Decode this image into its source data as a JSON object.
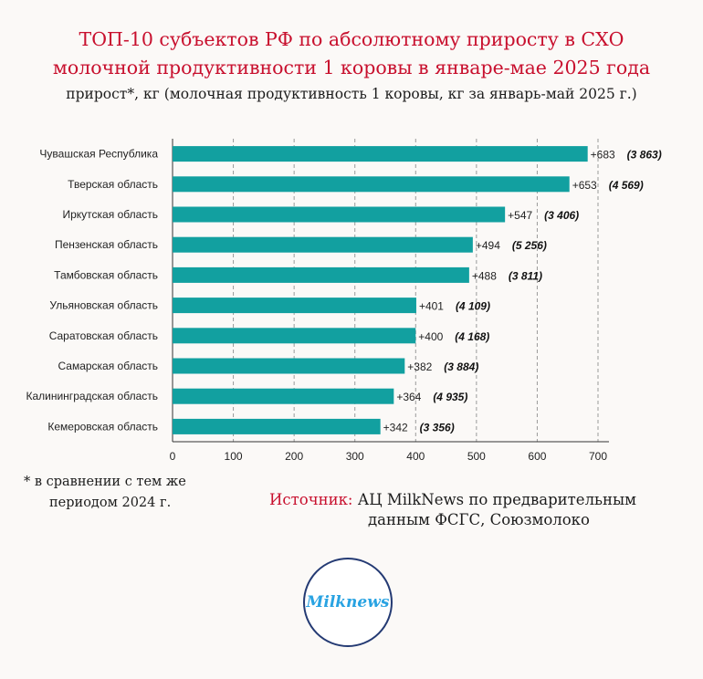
{
  "title_line1": "ТОП-10 субъектов РФ по абсолютному приросту в СХО",
  "title_line2": "молочной продуктивности 1 коровы в январе-мае 2025 года",
  "subtitle": "прирост*, кг (молочная продуктивность 1 коровы, кг за январь-май 2025 г.)",
  "footnote_line1": "* в сравнении с тем же",
  "footnote_line2": "периодом 2024 г.",
  "source_label": "Источник:",
  "source_line1": "АЦ MilkNews по предварительным",
  "source_line2": "данным ФСГС, Союзмолоко",
  "logo_text": "Milknews",
  "colors": {
    "bar": "#12a0a0",
    "title": "#c8102e",
    "logo_ring": "#243a73",
    "logo_text": "#29a3e2"
  },
  "chart_data": {
    "type": "bar",
    "orientation": "horizontal",
    "categories": [
      "Чувашская Республика",
      "Тверская область",
      "Иркутская область",
      "Пензенская область",
      "Тамбовская область",
      "Ульяновская область",
      "Саратовская область",
      "Самарская область",
      "Калининградская область",
      "Кемеровская область"
    ],
    "values": [
      683,
      653,
      547,
      494,
      488,
      401,
      400,
      382,
      364,
      342
    ],
    "value_labels": [
      "+683",
      "+653",
      "+547",
      "+494",
      "+488",
      "+401",
      "+400",
      "+382",
      "+364",
      "+342"
    ],
    "secondary_labels": [
      "(3 863)",
      "(4 569)",
      "(3 406)",
      "(5 256)",
      "(3 811)",
      "(4 109)",
      "(4 168)",
      "(3 884)",
      "(4 935)",
      "(3 356)"
    ],
    "xlim": [
      0,
      700
    ],
    "xticks": [
      "0",
      "100",
      "200",
      "300",
      "400",
      "500",
      "600",
      "700"
    ],
    "grid": "vertical dashed"
  }
}
